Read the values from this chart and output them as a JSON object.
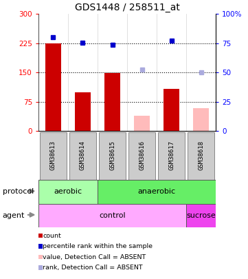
{
  "title": "GDS1448 / 258511_at",
  "samples": [
    "GSM38613",
    "GSM38614",
    "GSM38615",
    "GSM38616",
    "GSM38617",
    "GSM38618"
  ],
  "bar_values": [
    225,
    100,
    148,
    null,
    108,
    null
  ],
  "bar_colors_present": "#cc0000",
  "bar_colors_absent": "#ffbbbb",
  "absent_bar_values": [
    null,
    null,
    null,
    40,
    null,
    58
  ],
  "dot_values_present": [
    240,
    227,
    221,
    null,
    232,
    null
  ],
  "dot_values_absent": [
    null,
    null,
    null,
    157,
    null,
    150
  ],
  "dot_color_present": "#0000cc",
  "dot_color_absent": "#aaaadd",
  "ylim_left": [
    0,
    300
  ],
  "ylim_right": [
    0,
    100
  ],
  "yticks_left": [
    0,
    75,
    150,
    225,
    300
  ],
  "yticks_right": [
    0,
    25,
    50,
    75,
    100
  ],
  "ytick_labels_left": [
    "0",
    "75",
    "150",
    "225",
    "300"
  ],
  "ytick_labels_right": [
    "0",
    "25",
    "50",
    "75",
    "100%"
  ],
  "hlines": [
    75,
    150,
    225
  ],
  "protocol_groups": [
    {
      "label": "aerobic",
      "start": 0,
      "end": 2,
      "color": "#aaffaa"
    },
    {
      "label": "anaerobic",
      "start": 2,
      "end": 6,
      "color": "#66ee66"
    }
  ],
  "agent_groups": [
    {
      "label": "control",
      "start": 0,
      "end": 5,
      "color": "#ffaaff"
    },
    {
      "label": "sucrose",
      "start": 5,
      "end": 6,
      "color": "#ee44ee"
    }
  ],
  "legend_items": [
    {
      "label": "count",
      "color": "#cc0000"
    },
    {
      "label": "percentile rank within the sample",
      "color": "#0000cc"
    },
    {
      "label": "value, Detection Call = ABSENT",
      "color": "#ffbbbb"
    },
    {
      "label": "rank, Detection Call = ABSENT",
      "color": "#aaaadd"
    }
  ],
  "protocol_label": "protocol",
  "agent_label": "agent",
  "sample_box_color": "#cccccc",
  "plot_bg": "#ffffff",
  "title_fontsize": 10,
  "bar_width": 0.55
}
